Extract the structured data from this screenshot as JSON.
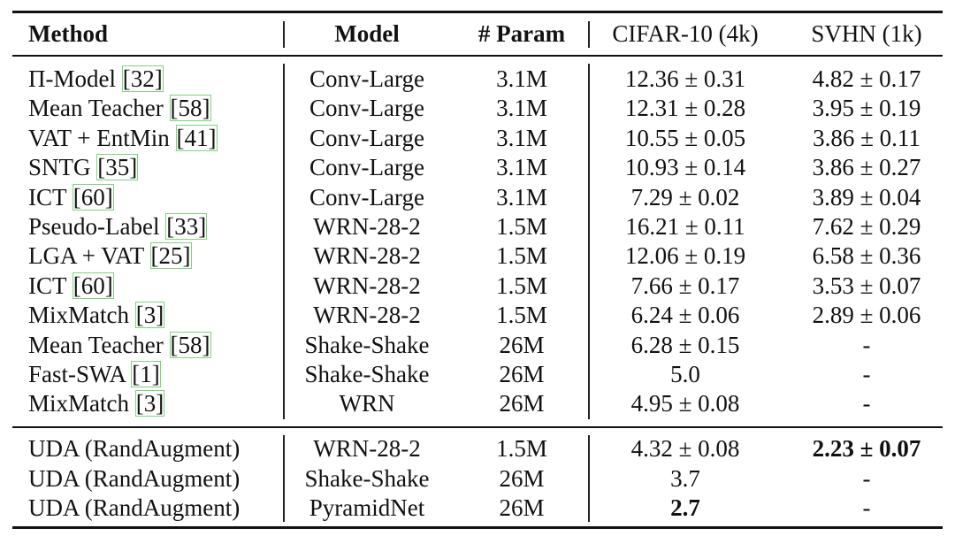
{
  "table": {
    "headers": {
      "method": "Method",
      "model": "Model",
      "param": "# Param",
      "cifar": "CIFAR-10 (4k)",
      "svhn": "SVHN (1k)"
    },
    "baselines": [
      {
        "method": "Π-Model",
        "cite": "[32]",
        "model": "Conv-Large",
        "param": "3.1M",
        "cifar": "12.36 ± 0.31",
        "svhn": "4.82 ± 0.17"
      },
      {
        "method": "Mean Teacher",
        "cite": "[58]",
        "model": "Conv-Large",
        "param": "3.1M",
        "cifar": "12.31 ± 0.28",
        "svhn": "3.95 ± 0.19"
      },
      {
        "method": "VAT + EntMin",
        "cite": "[41]",
        "model": "Conv-Large",
        "param": "3.1M",
        "cifar": "10.55 ± 0.05",
        "svhn": "3.86 ± 0.11"
      },
      {
        "method": "SNTG",
        "cite": "[35]",
        "model": "Conv-Large",
        "param": "3.1M",
        "cifar": "10.93 ± 0.14",
        "svhn": "3.86 ± 0.27"
      },
      {
        "method": "ICT",
        "cite": "[60]",
        "model": "Conv-Large",
        "param": "3.1M",
        "cifar": "7.29 ± 0.02",
        "svhn": "3.89 ± 0.04"
      },
      {
        "method": "Pseudo-Label",
        "cite": "[33]",
        "model": "WRN-28-2",
        "param": "1.5M",
        "cifar": "16.21 ± 0.11",
        "svhn": "7.62 ± 0.29"
      },
      {
        "method": "LGA + VAT",
        "cite": "[25]",
        "model": "WRN-28-2",
        "param": "1.5M",
        "cifar": "12.06 ± 0.19",
        "svhn": "6.58 ± 0.36"
      },
      {
        "method": "ICT",
        "cite": "[60]",
        "model": "WRN-28-2",
        "param": "1.5M",
        "cifar": "7.66 ± 0.17",
        "svhn": "3.53 ± 0.07"
      },
      {
        "method": "MixMatch",
        "cite": "[3]",
        "model": "WRN-28-2",
        "param": "1.5M",
        "cifar": "6.24 ± 0.06",
        "svhn": "2.89 ± 0.06"
      },
      {
        "method": "Mean Teacher",
        "cite": "[58]",
        "model": "Shake-Shake",
        "param": "26M",
        "cifar": "6.28 ± 0.15",
        "svhn": "-"
      },
      {
        "method": "Fast-SWA",
        "cite": "[1]",
        "model": "Shake-Shake",
        "param": "26M",
        "cifar": "5.0",
        "svhn": "-"
      },
      {
        "method": "MixMatch",
        "cite": "[3]",
        "model": "WRN",
        "param": "26M",
        "cifar": "4.95 ± 0.08",
        "svhn": "-"
      }
    ],
    "ours": [
      {
        "method": "UDA (RandAugment)",
        "cite": "",
        "model": "WRN-28-2",
        "param": "1.5M",
        "cifar": "4.32 ± 0.08",
        "svhn": "2.23 ± 0.07",
        "bold_cifar": false,
        "bold_svhn": true
      },
      {
        "method": "UDA (RandAugment)",
        "cite": "",
        "model": "Shake-Shake",
        "param": "26M",
        "cifar": "3.7",
        "svhn": "-",
        "bold_cifar": false,
        "bold_svhn": false
      },
      {
        "method": "UDA (RandAugment)",
        "cite": "",
        "model": "PyramidNet",
        "param": "26M",
        "cifar": "2.7",
        "svhn": "-",
        "bold_cifar": true,
        "bold_svhn": false
      }
    ]
  },
  "colors": {
    "citation_box": "#7fd47f",
    "text": "#111111"
  }
}
